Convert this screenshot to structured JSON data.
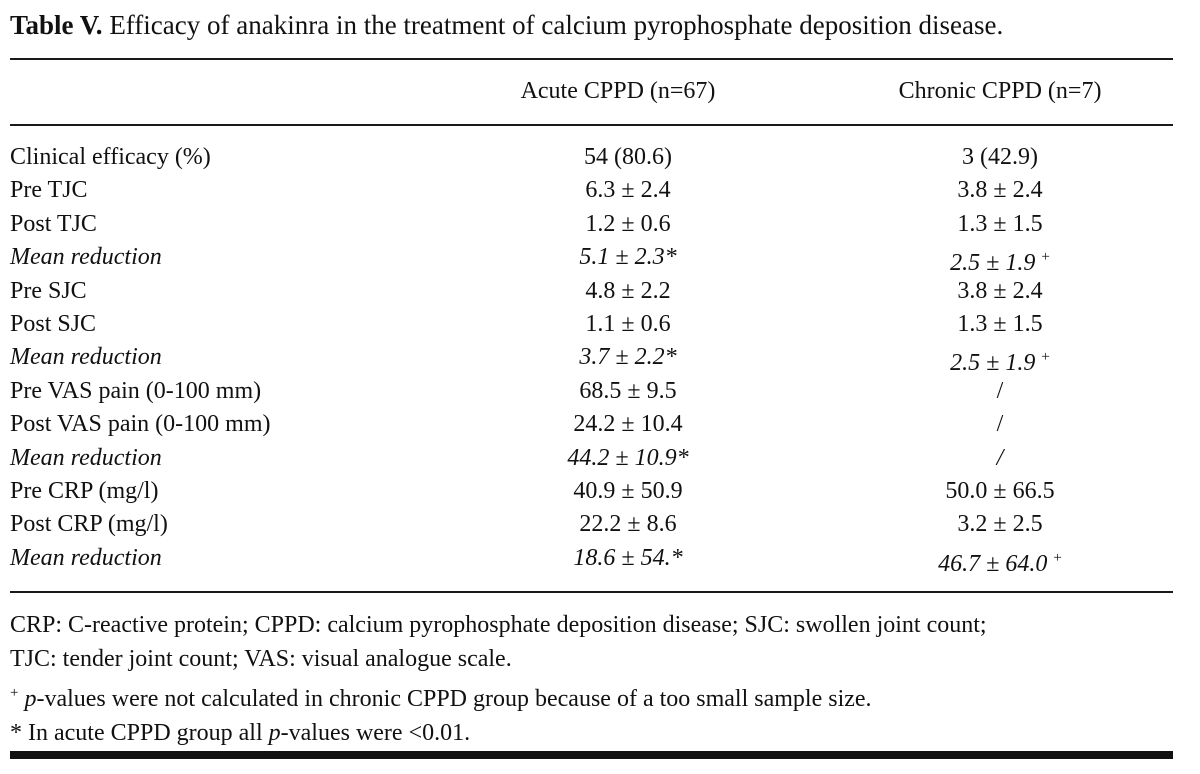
{
  "caption": {
    "label": "Table V.",
    "text": " Efficacy of anakinra in the treatment of calcium pyrophosphate deposition disease."
  },
  "columns": [
    "Acute CPPD (n=67)",
    "Chronic CPPD (n=7)"
  ],
  "rows": [
    {
      "label": "Clinical efficacy (%)",
      "acute": "54 (80.6)",
      "chronic": "3 (42.9)",
      "italic": false
    },
    {
      "label": "Pre TJC",
      "acute": "6.3 ± 2.4",
      "chronic": "3.8 ± 2.4",
      "italic": false
    },
    {
      "label": "Post TJC",
      "acute": "1.2 ± 0.6",
      "chronic": "1.3 ± 1.5",
      "italic": false
    },
    {
      "label": "Mean reduction",
      "acute": "5.1 ± 2.3*",
      "chronic": "2.5 ± 1.9",
      "chronic_mark": "+",
      "italic": true
    },
    {
      "label": "Pre SJC",
      "acute": "4.8 ± 2.2",
      "chronic": "3.8 ± 2.4",
      "italic": false
    },
    {
      "label": "Post SJC",
      "acute": "1.1 ± 0.6",
      "chronic": "1.3 ± 1.5",
      "italic": false
    },
    {
      "label": "Mean reduction",
      "acute": "3.7 ± 2.2*",
      "chronic": "2.5 ± 1.9",
      "chronic_mark": "+",
      "italic": true
    },
    {
      "label": "Pre VAS pain (0-100 mm)",
      "acute": "68.5 ± 9.5",
      "chronic": "/",
      "italic": false
    },
    {
      "label": "Post VAS pain (0-100 mm)",
      "acute": "24.2 ± 10.4",
      "chronic": "/",
      "italic": false
    },
    {
      "label": "Mean reduction",
      "acute": "44.2 ± 10.9*",
      "chronic": "/",
      "italic": true
    },
    {
      "label": "Pre CRP (mg/l)",
      "acute": "40.9 ± 50.9",
      "chronic": "50.0 ± 66.5",
      "italic": false
    },
    {
      "label": "Post CRP (mg/l)",
      "acute": "22.2 ± 8.6",
      "chronic": "3.2 ± 2.5",
      "italic": false
    },
    {
      "label": "Mean reduction",
      "acute": "18.6 ± 54.*",
      "chronic": "46.7 ± 64.0",
      "chronic_mark": "+",
      "italic": true
    }
  ],
  "notes": {
    "abbrev_line1": "CRP: C-reactive protein; CPPD: calcium pyrophosphate deposition disease; SJC: swollen joint count;",
    "abbrev_line2": "TJC: tender joint count; VAS: visual analogue scale.",
    "plus_mark": "+",
    "plus_p": "p",
    "plus_text": "-values were not calculated in chronic CPPD group because of a too small sample size.",
    "star_pre": "* In acute CPPD group all ",
    "star_p": "p",
    "star_post": "-values were <0.01."
  }
}
